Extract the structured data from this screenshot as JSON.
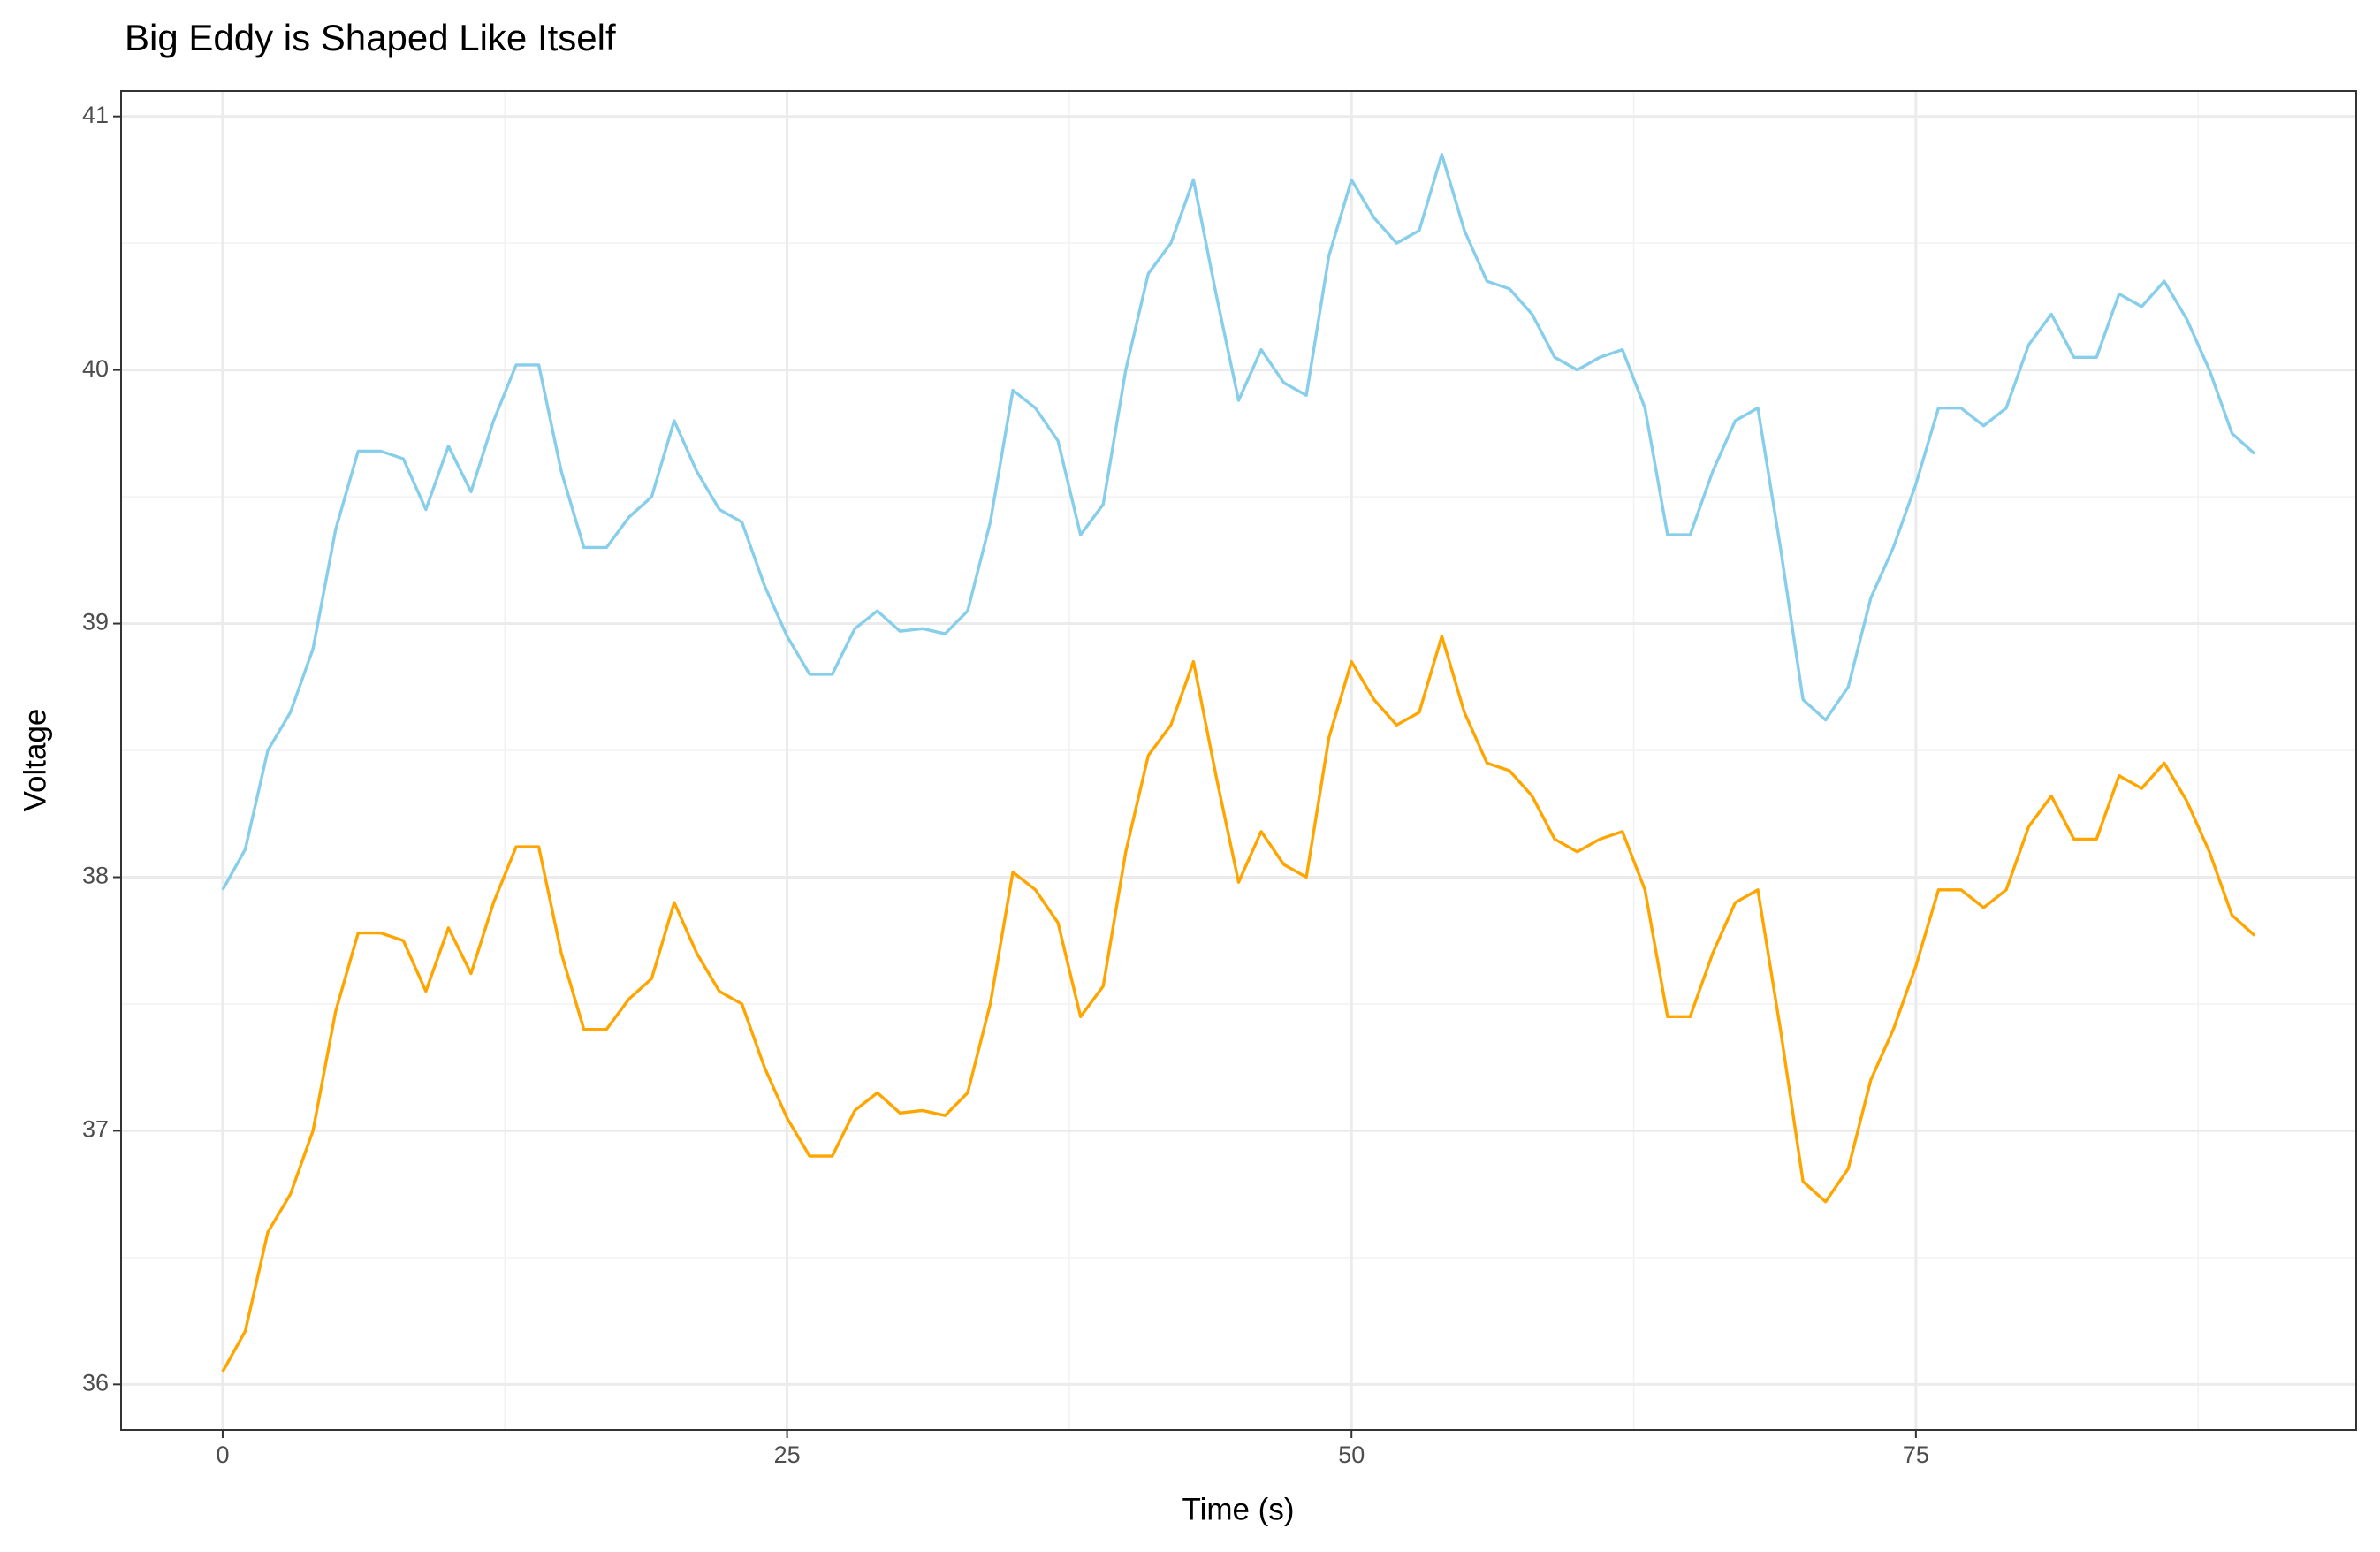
{
  "chart_data": {
    "type": "line",
    "title": "Big Eddy is Shaped Like Itself",
    "x_label": "Time (s)",
    "y_label": "Voltage",
    "x": [
      0,
      1,
      2,
      3,
      4,
      5,
      6,
      7,
      8,
      9,
      10,
      11,
      12,
      13,
      14,
      15,
      16,
      17,
      18,
      19,
      20,
      21,
      22,
      23,
      24,
      25,
      26,
      27,
      28,
      29,
      30,
      31,
      32,
      33,
      34,
      35,
      36,
      37,
      38,
      39,
      40,
      41,
      42,
      43,
      44,
      45,
      46,
      47,
      48,
      49,
      50,
      51,
      52,
      53,
      54,
      55,
      56,
      57,
      58,
      59,
      60,
      61,
      62,
      63,
      64,
      65,
      66,
      67,
      68,
      69,
      70,
      71,
      72,
      73,
      74,
      75,
      76,
      77,
      78,
      79,
      80,
      81,
      82,
      83,
      84,
      85,
      86,
      87,
      88,
      89,
      90
    ],
    "series": [
      {
        "color": "#87ceeb",
        "values": [
          37.95,
          38.11,
          38.5,
          38.65,
          38.9,
          39.37,
          39.68,
          39.68,
          39.65,
          39.45,
          39.7,
          39.52,
          39.8,
          40.02,
          40.02,
          39.6,
          39.3,
          39.3,
          39.42,
          39.5,
          39.8,
          39.6,
          39.45,
          39.4,
          39.15,
          38.95,
          38.8,
          38.8,
          38.98,
          39.05,
          38.97,
          38.98,
          38.96,
          39.05,
          39.4,
          39.92,
          39.85,
          39.72,
          39.35,
          39.47,
          40.0,
          40.38,
          40.5,
          40.75,
          40.3,
          39.88,
          40.08,
          39.95,
          39.9,
          40.45,
          40.75,
          40.6,
          40.5,
          40.55,
          40.85,
          40.55,
          40.35,
          40.32,
          40.22,
          40.05,
          40.0,
          40.05,
          40.08,
          39.85,
          39.35,
          39.35,
          39.6,
          39.8,
          39.85,
          39.3,
          38.7,
          38.62,
          38.75,
          39.1,
          39.3,
          39.55,
          39.85,
          39.85,
          39.78,
          39.85,
          40.1,
          40.22,
          40.05,
          40.05,
          40.3,
          40.25,
          40.35,
          40.2,
          40.0,
          39.75,
          39.67
        ]
      },
      {
        "color": "#ffa500",
        "values": [
          36.05,
          36.21,
          36.6,
          36.75,
          37.0,
          37.47,
          37.78,
          37.78,
          37.75,
          37.55,
          37.8,
          37.62,
          37.9,
          38.12,
          38.12,
          37.7,
          37.4,
          37.4,
          37.52,
          37.6,
          37.9,
          37.7,
          37.55,
          37.5,
          37.25,
          37.05,
          36.9,
          36.9,
          37.08,
          37.15,
          37.07,
          37.08,
          37.06,
          37.15,
          37.5,
          38.02,
          37.95,
          37.82,
          37.45,
          37.57,
          38.1,
          38.48,
          38.6,
          38.85,
          38.4,
          37.98,
          38.18,
          38.05,
          38.0,
          38.55,
          38.85,
          38.7,
          38.6,
          38.65,
          38.95,
          38.65,
          38.45,
          38.42,
          38.32,
          38.15,
          38.1,
          38.15,
          38.18,
          37.95,
          37.45,
          37.45,
          37.7,
          37.9,
          37.95,
          37.4,
          36.8,
          36.72,
          36.85,
          37.2,
          37.4,
          37.65,
          37.95,
          37.95,
          37.88,
          37.95,
          38.2,
          38.32,
          38.15,
          38.15,
          38.4,
          38.35,
          38.45,
          38.3,
          38.1,
          37.85,
          37.77
        ]
      }
    ],
    "xlim": [
      -4.5,
      94.5
    ],
    "ylim": [
      35.82,
      41.1
    ],
    "xticks": [
      0,
      25,
      50,
      75
    ],
    "yticks": [
      36,
      37,
      38,
      39,
      40,
      41
    ],
    "xminor": [
      12.5,
      37.5,
      62.5,
      87.5
    ],
    "yminor": [
      36.5,
      37.5,
      38.5,
      39.5,
      40.5
    ],
    "grid": true
  }
}
